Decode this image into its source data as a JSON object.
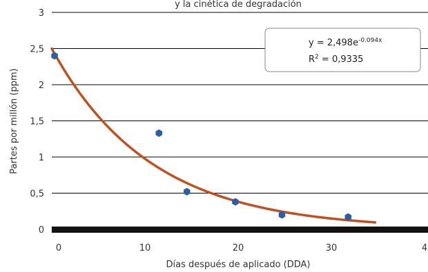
{
  "chart_data": {
    "type": "scatter",
    "title": "y la cinética de degradación",
    "xlabel": "Días después de aplicado (DDA)",
    "ylabel": "Partes por millón (ppm)",
    "xlim": [
      0,
      45
    ],
    "ylim": [
      0,
      3
    ],
    "x_ticks": [
      "0",
      "10",
      "20",
      "30",
      "4"
    ],
    "y_ticks": [
      "0",
      "0,5",
      "1",
      "1,5",
      "2",
      "2,5",
      "3"
    ],
    "grid": true,
    "points": [
      {
        "x": 0.3,
        "y": 2.4
      },
      {
        "x": 11.5,
        "y": 1.33
      },
      {
        "x": 14.5,
        "y": 0.52
      },
      {
        "x": 19.7,
        "y": 0.38
      },
      {
        "x": 24.7,
        "y": 0.2
      },
      {
        "x": 31.8,
        "y": 0.17
      }
    ],
    "trendline": {
      "type": "exponential",
      "a": 2.498,
      "b": -0.094,
      "x_range": [
        0,
        34.7
      ],
      "equation_label": "y = 2,498e",
      "equation_exponent": "-0.094x",
      "r2_label": "R",
      "r2_exponent": "2",
      "r2_value": " = 0,9335"
    },
    "colors": {
      "points": "#2E5DA8",
      "trendline": "#C0501E",
      "baseline": "#111111",
      "grid": "#000000"
    }
  }
}
